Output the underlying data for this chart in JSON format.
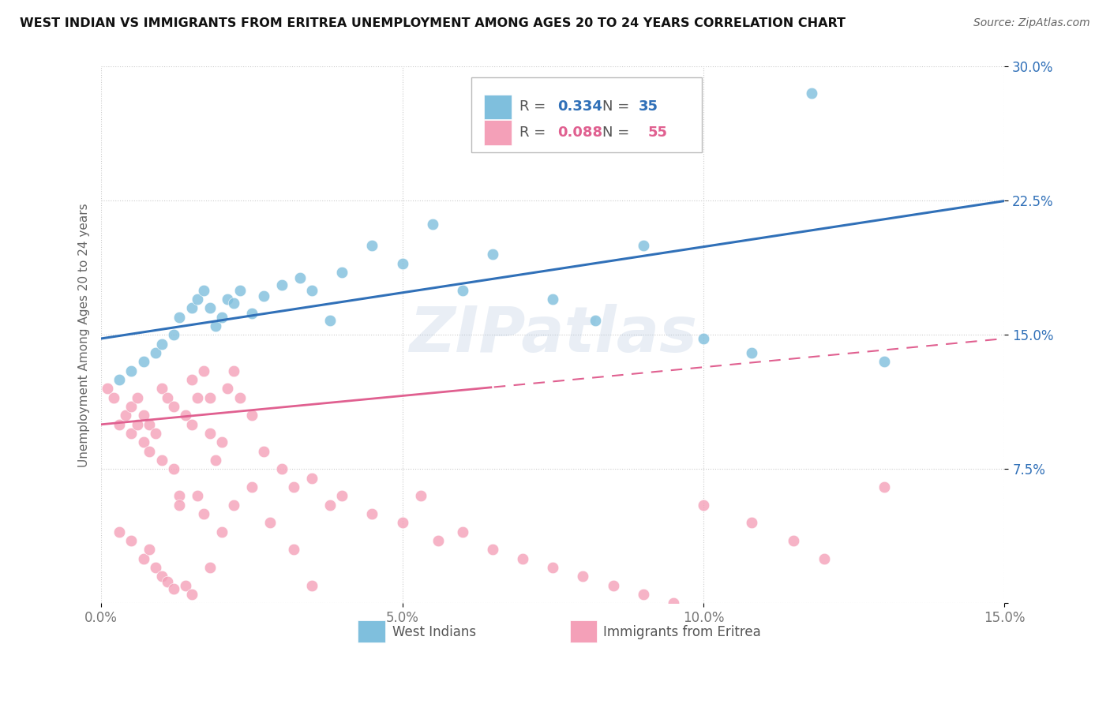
{
  "title": "WEST INDIAN VS IMMIGRANTS FROM ERITREA UNEMPLOYMENT AMONG AGES 20 TO 24 YEARS CORRELATION CHART",
  "source": "Source: ZipAtlas.com",
  "ylabel": "Unemployment Among Ages 20 to 24 years",
  "xlim": [
    0.0,
    0.15
  ],
  "ylim": [
    0.0,
    0.3
  ],
  "xticks": [
    0.0,
    0.05,
    0.1,
    0.15
  ],
  "xtick_labels": [
    "0.0%",
    "5.0%",
    "10.0%",
    "15.0%"
  ],
  "yticks": [
    0.0,
    0.075,
    0.15,
    0.225,
    0.3
  ],
  "ytick_labels": [
    "",
    "7.5%",
    "15.0%",
    "22.5%",
    "30.0%"
  ],
  "blue_color": "#7fbfdd",
  "pink_color": "#f4a0b8",
  "blue_line_color": "#3070b8",
  "pink_line_color": "#e06090",
  "R_blue": 0.334,
  "N_blue": 35,
  "R_pink": 0.088,
  "N_pink": 55,
  "legend_label_blue": "West Indians",
  "legend_label_pink": "Immigrants from Eritrea",
  "wi_x": [
    0.003,
    0.005,
    0.007,
    0.009,
    0.01,
    0.012,
    0.013,
    0.015,
    0.016,
    0.017,
    0.018,
    0.019,
    0.02,
    0.021,
    0.022,
    0.023,
    0.025,
    0.027,
    0.03,
    0.033,
    0.035,
    0.038,
    0.04,
    0.045,
    0.05,
    0.055,
    0.06,
    0.065,
    0.075,
    0.082,
    0.09,
    0.1,
    0.108,
    0.118,
    0.13
  ],
  "wi_y": [
    0.125,
    0.13,
    0.135,
    0.14,
    0.145,
    0.15,
    0.16,
    0.165,
    0.17,
    0.175,
    0.165,
    0.155,
    0.16,
    0.17,
    0.168,
    0.175,
    0.162,
    0.172,
    0.178,
    0.182,
    0.175,
    0.158,
    0.185,
    0.2,
    0.19,
    0.212,
    0.175,
    0.195,
    0.17,
    0.158,
    0.2,
    0.148,
    0.14,
    0.285,
    0.135
  ],
  "er_x": [
    0.001,
    0.002,
    0.003,
    0.004,
    0.005,
    0.005,
    0.006,
    0.006,
    0.007,
    0.007,
    0.008,
    0.008,
    0.009,
    0.01,
    0.01,
    0.011,
    0.012,
    0.012,
    0.013,
    0.014,
    0.015,
    0.015,
    0.016,
    0.017,
    0.018,
    0.018,
    0.019,
    0.02,
    0.021,
    0.022,
    0.023,
    0.025,
    0.027,
    0.03,
    0.032,
    0.035,
    0.038,
    0.04,
    0.045,
    0.05,
    0.053,
    0.056,
    0.06,
    0.065,
    0.07,
    0.075,
    0.08,
    0.085,
    0.09,
    0.095,
    0.1,
    0.108,
    0.115,
    0.12,
    0.13
  ],
  "er_y": [
    0.12,
    0.115,
    0.1,
    0.105,
    0.095,
    0.11,
    0.1,
    0.115,
    0.09,
    0.105,
    0.085,
    0.1,
    0.095,
    0.08,
    0.12,
    0.115,
    0.11,
    0.075,
    0.06,
    0.105,
    0.125,
    0.1,
    0.115,
    0.13,
    0.095,
    0.115,
    0.08,
    0.09,
    0.12,
    0.13,
    0.115,
    0.105,
    0.085,
    0.075,
    0.065,
    0.07,
    0.055,
    0.06,
    0.05,
    0.045,
    0.06,
    0.035,
    0.04,
    0.03,
    0.025,
    0.02,
    0.015,
    0.01,
    0.005,
    0.0,
    0.055,
    0.045,
    0.035,
    0.025,
    0.065
  ],
  "er_low_x": [
    0.003,
    0.005,
    0.007,
    0.008,
    0.009,
    0.01,
    0.011,
    0.012,
    0.013,
    0.014,
    0.015,
    0.016,
    0.017,
    0.018,
    0.02,
    0.022,
    0.025,
    0.028,
    0.032,
    0.035
  ],
  "er_low_y": [
    0.04,
    0.035,
    0.025,
    0.03,
    0.02,
    0.015,
    0.012,
    0.008,
    0.055,
    0.01,
    0.005,
    0.06,
    0.05,
    0.02,
    0.04,
    0.055,
    0.065,
    0.045,
    0.03,
    0.01
  ]
}
